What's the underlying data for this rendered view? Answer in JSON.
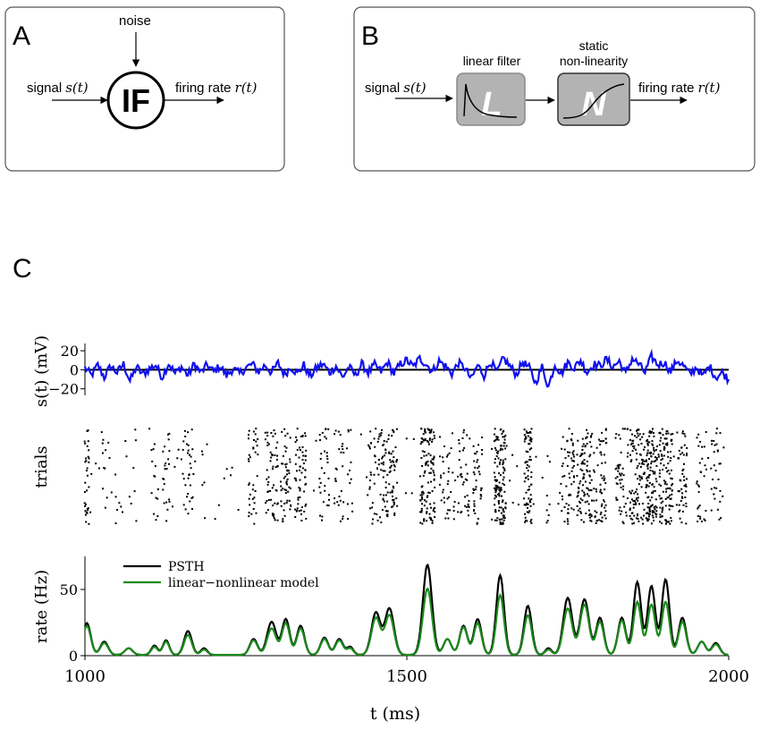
{
  "panel_a": {
    "letter": "A",
    "noise_label": "noise",
    "signal_label": "signal",
    "signal_math": "s(t)",
    "block_label": "IF",
    "output_label": "firing rate",
    "output_math": "r(t)"
  },
  "panel_b": {
    "letter": "B",
    "signal_label": "signal",
    "signal_math": "s(t)",
    "filter_title": "linear filter",
    "filter_letter": "L",
    "nonlin_title_1": "static",
    "nonlin_title_2": "non-linearity",
    "nonlin_letter": "N",
    "output_label": "firing rate",
    "output_math": "r(t)"
  },
  "panel_c": {
    "letter": "C"
  },
  "chart_data": [
    {
      "type": "line",
      "ylabel": "s(t)  (mV)",
      "yticks": [
        "20",
        "0",
        "−20"
      ],
      "ylim": [
        -25,
        22
      ],
      "xlim": [
        1000,
        2000
      ],
      "series": [
        {
          "color": "#1010ee",
          "x": [
            1000,
            1010,
            1020,
            1030,
            1040,
            1050,
            1060,
            1070,
            1080,
            1090,
            1100,
            1110,
            1120,
            1130,
            1140,
            1150,
            1160,
            1170,
            1180,
            1190,
            1200,
            1210,
            1220,
            1230,
            1240,
            1250,
            1260,
            1270,
            1280,
            1290,
            1300,
            1310,
            1320,
            1330,
            1340,
            1350,
            1360,
            1370,
            1380,
            1390,
            1400,
            1410,
            1420,
            1430,
            1440,
            1450,
            1460,
            1470,
            1480,
            1490,
            1500,
            1510,
            1520,
            1530,
            1540,
            1550,
            1560,
            1570,
            1580,
            1590,
            1600,
            1610,
            1620,
            1630,
            1640,
            1650,
            1660,
            1670,
            1680,
            1690,
            1700,
            1710,
            1720,
            1730,
            1740,
            1750,
            1760,
            1770,
            1780,
            1790,
            1800,
            1810,
            1820,
            1830,
            1840,
            1850,
            1860,
            1870,
            1880,
            1890,
            1900,
            1910,
            1920,
            1930,
            1940,
            1950,
            1960,
            1970,
            1980,
            1990,
            2000
          ],
          "y": [
            2,
            -6,
            5,
            -8,
            4,
            -3,
            6,
            -12,
            3,
            -5,
            1,
            5,
            -8,
            7,
            -4,
            3,
            -6,
            6,
            -3,
            5,
            -2,
            4,
            -6,
            1,
            -4,
            2,
            6,
            -2,
            5,
            -3,
            7,
            -5,
            3,
            -4,
            5,
            -7,
            2,
            6,
            -3,
            4,
            -8,
            3,
            -6,
            6,
            -3,
            5,
            -2,
            8,
            -4,
            6,
            10,
            3,
            12,
            6,
            -2,
            9,
            4,
            -4,
            7,
            2,
            -10,
            5,
            -6,
            9,
            -3,
            12,
            4,
            -5,
            8,
            2,
            -14,
            3,
            -18,
            6,
            -4,
            8,
            2,
            10,
            -3,
            6,
            4,
            11,
            3,
            9,
            -4,
            12,
            6,
            -3,
            14,
            5,
            8,
            -2,
            10,
            4,
            -5,
            3,
            -7,
            4,
            -8,
            -3,
            -10
          ]
        }
      ]
    },
    {
      "type": "scatter",
      "ylabel": "trials",
      "xlim": [
        1000,
        2000
      ],
      "bursts": [
        {
          "t": 1003,
          "w": 4,
          "n": 32
        },
        {
          "t": 1030,
          "w": 5,
          "n": 8
        },
        {
          "t": 1048,
          "w": 10,
          "n": 6
        },
        {
          "t": 1068,
          "w": 12,
          "n": 6
        },
        {
          "t": 1108,
          "w": 6,
          "n": 12
        },
        {
          "t": 1126,
          "w": 6,
          "n": 20
        },
        {
          "t": 1160,
          "w": 8,
          "n": 30
        },
        {
          "t": 1185,
          "w": 6,
          "n": 5
        },
        {
          "t": 1218,
          "w": 2,
          "n": 1
        },
        {
          "t": 1262,
          "w": 8,
          "n": 35
        },
        {
          "t": 1290,
          "w": 10,
          "n": 55
        },
        {
          "t": 1312,
          "w": 8,
          "n": 48
        },
        {
          "t": 1335,
          "w": 9,
          "n": 60
        },
        {
          "t": 1372,
          "w": 8,
          "n": 30
        },
        {
          "t": 1395,
          "w": 8,
          "n": 25
        },
        {
          "t": 1412,
          "w": 4,
          "n": 12
        },
        {
          "t": 1452,
          "w": 12,
          "n": 50
        },
        {
          "t": 1473,
          "w": 12,
          "n": 75
        },
        {
          "t": 1532,
          "w": 12,
          "n": 120
        },
        {
          "t": 1563,
          "w": 12,
          "n": 35
        },
        {
          "t": 1588,
          "w": 9,
          "n": 30
        },
        {
          "t": 1610,
          "w": 7,
          "n": 35
        },
        {
          "t": 1645,
          "w": 9,
          "n": 130
        },
        {
          "t": 1688,
          "w": 6,
          "n": 75
        },
        {
          "t": 1720,
          "w": 4,
          "n": 8
        },
        {
          "t": 1750,
          "w": 10,
          "n": 55
        },
        {
          "t": 1776,
          "w": 12,
          "n": 95
        },
        {
          "t": 1800,
          "w": 10,
          "n": 60
        },
        {
          "t": 1834,
          "w": 10,
          "n": 50
        },
        {
          "t": 1858,
          "w": 12,
          "n": 100
        },
        {
          "t": 1880,
          "w": 9,
          "n": 120
        },
        {
          "t": 1902,
          "w": 11,
          "n": 110
        },
        {
          "t": 1928,
          "w": 7,
          "n": 45
        },
        {
          "t": 1958,
          "w": 8,
          "n": 30
        },
        {
          "t": 1980,
          "w": 8,
          "n": 28
        }
      ]
    },
    {
      "type": "line",
      "ylabel": "rate (Hz)",
      "xlabel": "t  (ms)",
      "xticks": [
        1000,
        1500,
        2000
      ],
      "yticks": [
        0,
        50
      ],
      "xlim": [
        1000,
        2000
      ],
      "ylim": [
        0,
        75
      ],
      "legend": "top-left",
      "peaks": [
        {
          "t": 1003,
          "psth": 24,
          "ln": 22,
          "w": 6
        },
        {
          "t": 1030,
          "psth": 10,
          "ln": 9,
          "w": 6
        },
        {
          "t": 1068,
          "psth": 5,
          "ln": 5,
          "w": 6
        },
        {
          "t": 1108,
          "psth": 7,
          "ln": 6,
          "w": 5
        },
        {
          "t": 1126,
          "psth": 11,
          "ln": 10,
          "w": 5
        },
        {
          "t": 1160,
          "psth": 18,
          "ln": 15,
          "w": 6
        },
        {
          "t": 1185,
          "psth": 5,
          "ln": 4,
          "w": 5
        },
        {
          "t": 1262,
          "psth": 12,
          "ln": 11,
          "w": 6
        },
        {
          "t": 1290,
          "psth": 25,
          "ln": 20,
          "w": 7
        },
        {
          "t": 1312,
          "psth": 27,
          "ln": 24,
          "w": 6
        },
        {
          "t": 1335,
          "psth": 22,
          "ln": 20,
          "w": 6
        },
        {
          "t": 1372,
          "psth": 13,
          "ln": 12,
          "w": 6
        },
        {
          "t": 1395,
          "psth": 12,
          "ln": 11,
          "w": 6
        },
        {
          "t": 1412,
          "psth": 6,
          "ln": 5,
          "w": 5
        },
        {
          "t": 1452,
          "psth": 32,
          "ln": 28,
          "w": 7
        },
        {
          "t": 1473,
          "psth": 35,
          "ln": 30,
          "w": 7
        },
        {
          "t": 1532,
          "psth": 68,
          "ln": 50,
          "w": 7
        },
        {
          "t": 1563,
          "psth": 12,
          "ln": 12,
          "w": 6
        },
        {
          "t": 1588,
          "psth": 22,
          "ln": 21,
          "w": 6
        },
        {
          "t": 1610,
          "psth": 27,
          "ln": 24,
          "w": 6
        },
        {
          "t": 1645,
          "psth": 60,
          "ln": 45,
          "w": 6
        },
        {
          "t": 1688,
          "psth": 37,
          "ln": 30,
          "w": 6
        },
        {
          "t": 1720,
          "psth": 5,
          "ln": 4,
          "w": 5
        },
        {
          "t": 1750,
          "psth": 43,
          "ln": 35,
          "w": 7
        },
        {
          "t": 1776,
          "psth": 42,
          "ln": 38,
          "w": 7
        },
        {
          "t": 1800,
          "psth": 28,
          "ln": 25,
          "w": 6
        },
        {
          "t": 1834,
          "psth": 28,
          "ln": 26,
          "w": 6
        },
        {
          "t": 1858,
          "psth": 55,
          "ln": 40,
          "w": 6
        },
        {
          "t": 1880,
          "psth": 52,
          "ln": 38,
          "w": 6
        },
        {
          "t": 1902,
          "psth": 57,
          "ln": 40,
          "w": 6
        },
        {
          "t": 1928,
          "psth": 28,
          "ln": 25,
          "w": 6
        },
        {
          "t": 1958,
          "psth": 10,
          "ln": 10,
          "w": 6
        },
        {
          "t": 1980,
          "psth": 9,
          "ln": 8,
          "w": 6
        }
      ],
      "series": [
        {
          "name": "PSTH",
          "color": "#000000"
        },
        {
          "name": "linear−nonlinear model",
          "color": "#1a8a1a"
        }
      ]
    }
  ]
}
